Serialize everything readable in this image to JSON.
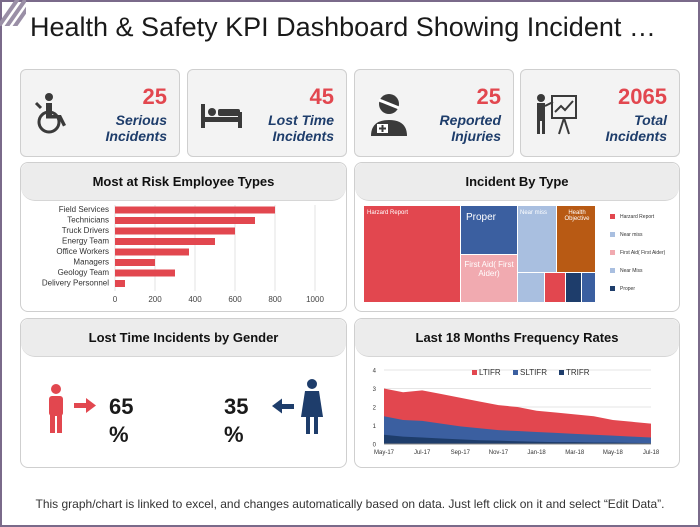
{
  "title": "Health & Safety KPI Dashboard Showing Incident …",
  "kpis": [
    {
      "value": "25",
      "label_line1": "Serious",
      "label_line2": "Incidents",
      "icon": "wheelchair-icon"
    },
    {
      "value": "45",
      "label_line1": "Lost Time",
      "label_line2": "Incidents",
      "icon": "bed-icon"
    },
    {
      "value": "25",
      "label_line1": "Reported",
      "label_line2": "Injuries",
      "icon": "injured-person-icon"
    },
    {
      "value": "2065",
      "label_line1": "Total",
      "label_line2": "Incidents",
      "icon": "presenter-board-icon"
    }
  ],
  "panels": {
    "risk": "Most at Risk Employee Types",
    "incident_type": "Incident By Type",
    "gender": "Lost Time Incidents by Gender",
    "frequency": "Last 18 Months Frequency Rates"
  },
  "gender": {
    "male_pct": "65",
    "female_pct": "35",
    "pct_symbol": "%"
  },
  "footer": "This graph/chart is linked to excel, and changes automatically  based on data.  Just left click on it and select “Edit Data”.",
  "colors": {
    "red": "#e2474f",
    "navy": "#1e3d6b",
    "blue": "#3b5fa0",
    "orange": "#b85a14",
    "lightblue": "#a9bfe0",
    "pink": "#f1aab0"
  },
  "chart_data": [
    {
      "type": "bar",
      "orientation": "horizontal",
      "title": "Most at Risk Employee Types",
      "categories": [
        "Field Services",
        "Technicians",
        "Truck Drivers",
        "Energy Team",
        "Office Workers",
        "Managers",
        "Geology Team",
        "Delivery Personnel"
      ],
      "values": [
        800,
        700,
        600,
        500,
        370,
        200,
        300,
        50
      ],
      "xlim": [
        0,
        1000
      ],
      "xticks": [
        "0",
        "200",
        "400",
        "600",
        "800",
        "1000"
      ]
    },
    {
      "type": "treemap",
      "title": "Incident By Type",
      "tiles": [
        {
          "label": "Harzard Report",
          "color": "#e2474f"
        },
        {
          "label": "Proper",
          "color": "#3b5fa0"
        },
        {
          "label": "Near miss",
          "color": "#a9bfe0"
        },
        {
          "label": "Health Objective",
          "color": "#b85a14"
        },
        {
          "label": "First Aid( First Aider)",
          "color": "#f1aab0"
        }
      ],
      "legend": [
        {
          "label": "Harzard Report",
          "color": "#e2474f"
        },
        {
          "label": "Near miss",
          "color": "#a9bfe0"
        },
        {
          "label": "First Aid( First Aider)",
          "color": "#f1aab0"
        },
        {
          "label": "Near Miss",
          "color": "#a9bfe0"
        },
        {
          "label": "Proper",
          "color": "#1e3d6b"
        }
      ]
    },
    {
      "type": "area",
      "title": "Last 18 Months Frequency Rates",
      "x": [
        "May-17",
        "Jun-17",
        "Jul-17",
        "Aug-17",
        "Sep-17",
        "Oct-17",
        "Nov-17",
        "Dec-17",
        "Jan-18",
        "Feb-18",
        "Mar-18",
        "Apr-18",
        "May-18",
        "Jun-18",
        "Jul-18"
      ],
      "xticks": [
        "May-17",
        "Jul-17",
        "Sep-17",
        "Nov-17",
        "Jan-18",
        "Mar-18",
        "May-18",
        "Jul-18"
      ],
      "ylim": [
        0,
        4
      ],
      "yticks": [
        "0",
        "1",
        "2",
        "3",
        "4"
      ],
      "series": [
        {
          "name": "LTIFR",
          "color": "#e2474f",
          "values": [
            3.0,
            2.8,
            2.9,
            2.7,
            2.5,
            2.3,
            2.1,
            2.0,
            1.8,
            1.7,
            1.6,
            1.5,
            1.3,
            1.2,
            1.1
          ]
        },
        {
          "name": "SLTIFR",
          "color": "#3b5fa0",
          "values": [
            1.5,
            1.3,
            1.25,
            1.1,
            0.95,
            0.85,
            0.75,
            0.7,
            0.65,
            0.6,
            0.55,
            0.5,
            0.45,
            0.4,
            0.35
          ]
        },
        {
          "name": "TRIFR",
          "color": "#1e3d6b",
          "values": [
            0.5,
            0.4,
            0.35,
            0.3,
            0.25,
            0.2,
            0.18,
            0.15,
            0.12,
            0.1,
            0.1,
            0.08,
            0.08,
            0.06,
            0.05
          ]
        }
      ]
    }
  ]
}
